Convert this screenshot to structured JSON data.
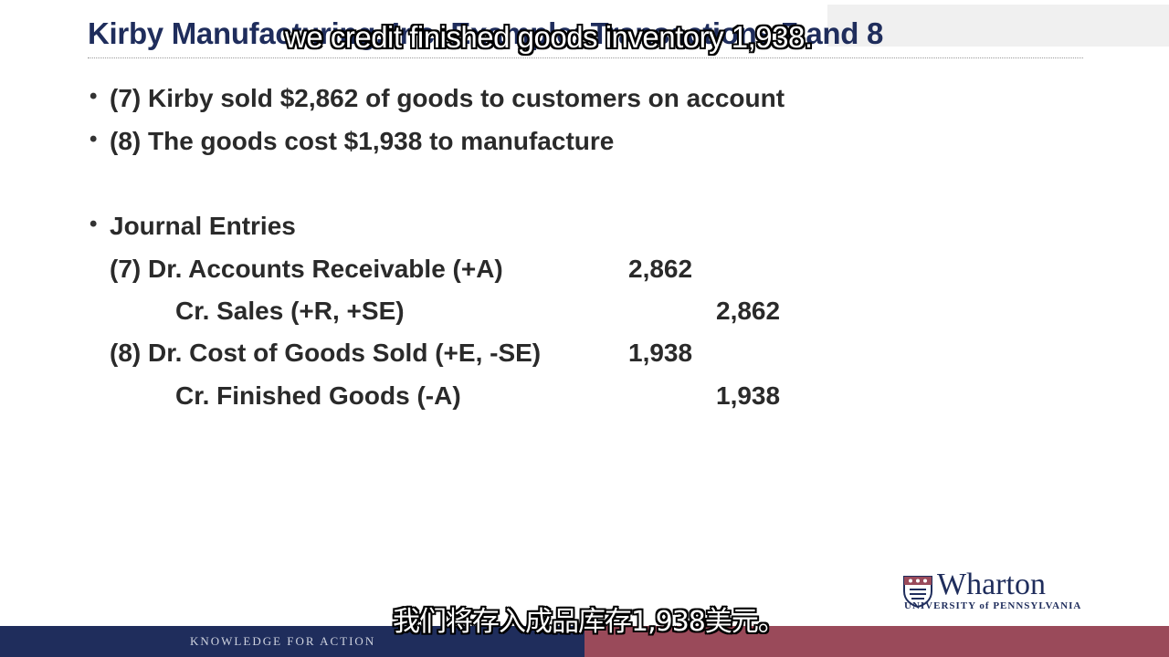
{
  "slide": {
    "title": "Kirby Manufacturing, Inc. Example: Transactions 7 and 8",
    "bullets": [
      "(7) Kirby sold $2,862 of goods to customers on account",
      "(8) The goods cost $1,938 to manufacture"
    ],
    "journal_heading": "Journal Entries",
    "journal_entries": [
      {
        "account": "(7) Dr. Accounts Receivable (+A)",
        "debit": "2,862",
        "credit": ""
      },
      {
        "account": "Cr. Sales (+R, +SE)",
        "debit": "",
        "credit": "2,862"
      },
      {
        "account": "(8) Dr. Cost of Goods Sold (+E, -SE)",
        "debit": "1,938",
        "credit": ""
      },
      {
        "account": "Cr. Finished Goods (-A)",
        "debit": "",
        "credit": "1,938"
      }
    ]
  },
  "subtitles": {
    "english": "we credit finished goods inventory 1,938.",
    "chinese": "我们将存入成品库存1,938美元。"
  },
  "logo": {
    "name": "Wharton",
    "university": "UNIVERSITY of PENNSYLVANIA"
  },
  "footer": {
    "tagline": "KNOWLEDGE FOR ACTION"
  },
  "colors": {
    "navy": "#1f2d5c",
    "maroon": "#9a4a5a",
    "text": "#2a2a2a"
  }
}
